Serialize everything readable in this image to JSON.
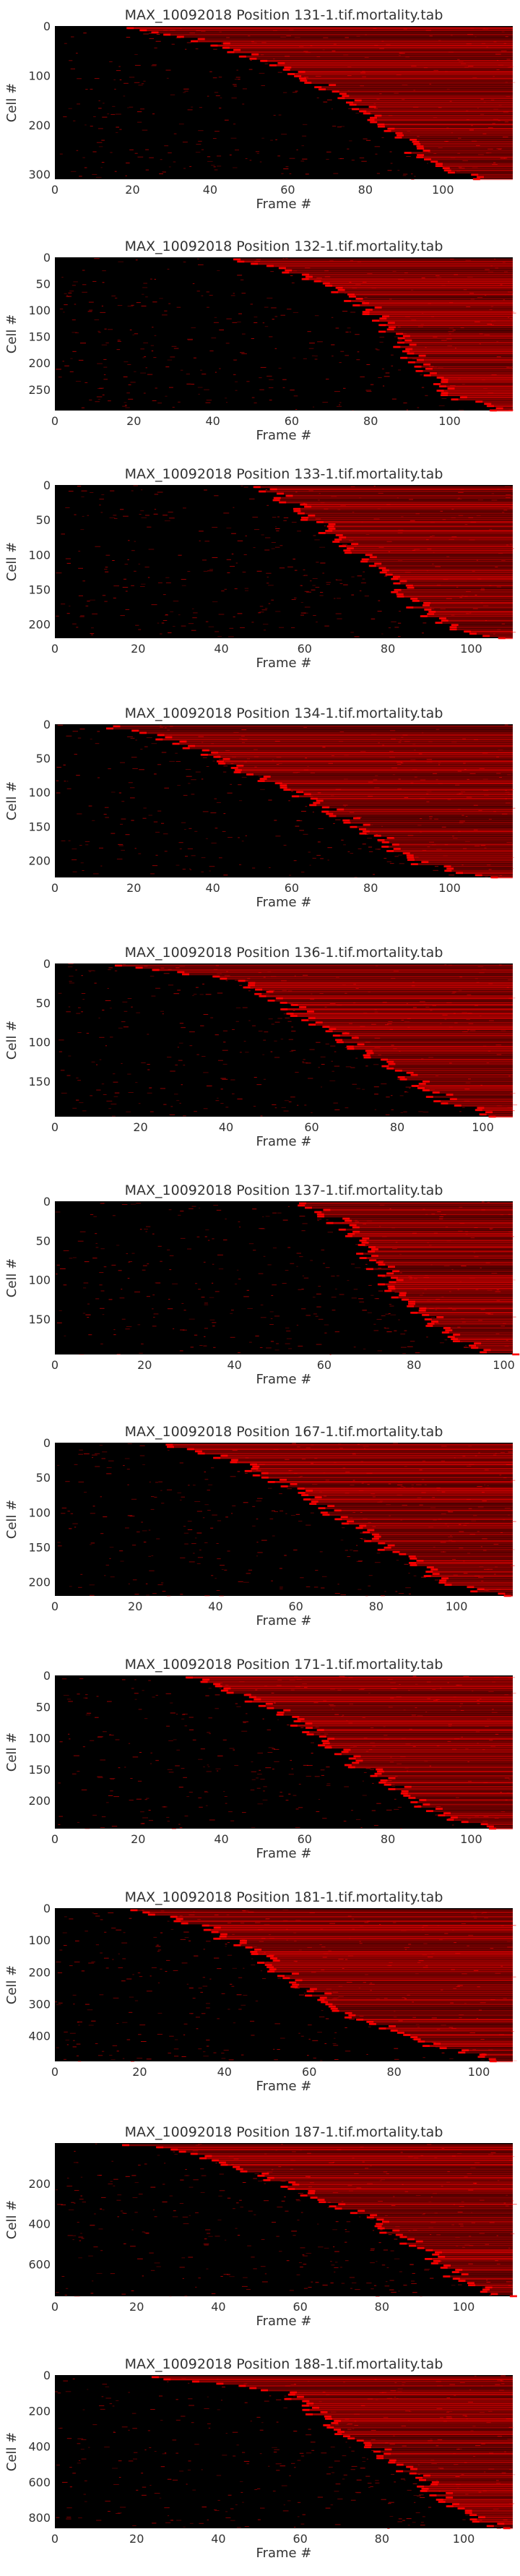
{
  "colors": {
    "background": "#000000",
    "signal": "#ff0000",
    "text": "#333333"
  },
  "chart_data": [
    {
      "type": "heatmap",
      "title": "MAX_10092018 Position 131-1.tif.mortality.tab",
      "xlabel": "Frame #",
      "ylabel": "Cell #",
      "xlim": [
        0,
        118
      ],
      "ylim": [
        0,
        310
      ],
      "xticks": [
        "0",
        "20",
        "40",
        "60",
        "80",
        "100"
      ],
      "yticks": [
        "0",
        "100",
        "200",
        "300"
      ],
      "onset_profile": {
        "cell_fraction": [
          0,
          0.1,
          0.3,
          0.5,
          0.7,
          0.9,
          1.0
        ],
        "frame": [
          16,
          40,
          62,
          78,
          88,
          96,
          110
        ]
      }
    },
    {
      "type": "heatmap",
      "title": "MAX_10092018 Position 132-1.tif.mortality.tab",
      "xlabel": "Frame #",
      "ylabel": "Cell #",
      "xlim": [
        0,
        116
      ],
      "ylim": [
        0,
        290
      ],
      "xticks": [
        "0",
        "20",
        "40",
        "60",
        "80",
        "100"
      ],
      "yticks": [
        "0",
        "50",
        "100",
        "150",
        "200",
        "250"
      ],
      "onset_profile": {
        "cell_fraction": [
          0,
          0.1,
          0.3,
          0.5,
          0.7,
          0.9,
          1.0
        ],
        "frame": [
          45,
          62,
          78,
          86,
          92,
          100,
          114
        ]
      }
    },
    {
      "type": "heatmap",
      "title": "MAX_10092018 Position 133-1.tif.mortality.tab",
      "xlabel": "Frame #",
      "ylabel": "Cell #",
      "xlim": [
        0,
        110
      ],
      "ylim": [
        0,
        220
      ],
      "xticks": [
        "0",
        "20",
        "40",
        "60",
        "80",
        "100"
      ],
      "yticks": [
        "0",
        "50",
        "100",
        "150",
        "200"
      ],
      "onset_profile": {
        "cell_fraction": [
          0,
          0.1,
          0.3,
          0.5,
          0.7,
          0.9,
          1.0
        ],
        "frame": [
          50,
          56,
          66,
          76,
          84,
          92,
          106
        ]
      }
    },
    {
      "type": "heatmap",
      "title": "MAX_10092018 Position 134-1.tif.mortality.tab",
      "xlabel": "Frame #",
      "ylabel": "Cell #",
      "xlim": [
        0,
        116
      ],
      "ylim": [
        0,
        225
      ],
      "xticks": [
        "0",
        "20",
        "40",
        "60",
        "80",
        "100"
      ],
      "yticks": [
        "0",
        "50",
        "100",
        "150",
        "200"
      ],
      "onset_profile": {
        "cell_fraction": [
          0,
          0.1,
          0.3,
          0.5,
          0.7,
          0.9,
          1.0
        ],
        "frame": [
          12,
          30,
          48,
          66,
          80,
          92,
          112
        ]
      }
    },
    {
      "type": "heatmap",
      "title": "MAX_10092018 Position 136-1.tif.mortality.tab",
      "xlabel": "Frame #",
      "ylabel": "Cell #",
      "xlim": [
        0,
        107
      ],
      "ylim": [
        0,
        195
      ],
      "xticks": [
        "0",
        "20",
        "40",
        "60",
        "80",
        "100"
      ],
      "yticks": [
        "0",
        "50",
        "100",
        "150"
      ],
      "onset_profile": {
        "cell_fraction": [
          0,
          0.1,
          0.3,
          0.5,
          0.7,
          0.9,
          1.0
        ],
        "frame": [
          12,
          44,
          56,
          68,
          80,
          92,
          104
        ]
      }
    },
    {
      "type": "heatmap",
      "title": "MAX_10092018 Position 137-1.tif.mortality.tab",
      "xlabel": "Frame #",
      "ylabel": "Cell #",
      "xlim": [
        0,
        102
      ],
      "ylim": [
        0,
        195
      ],
      "xticks": [
        "0",
        "20",
        "40",
        "60",
        "80",
        "100"
      ],
      "yticks": [
        "0",
        "50",
        "100",
        "150"
      ],
      "onset_profile": {
        "cell_fraction": [
          0,
          0.1,
          0.3,
          0.5,
          0.7,
          0.9,
          1.0
        ],
        "frame": [
          56,
          62,
          68,
          74,
          80,
          90,
          100
        ]
      }
    },
    {
      "type": "heatmap",
      "title": "MAX_10092018 Position 167-1.tif.mortality.tab",
      "xlabel": "Frame #",
      "ylabel": "Cell #",
      "xlim": [
        0,
        114
      ],
      "ylim": [
        0,
        220
      ],
      "xticks": [
        "0",
        "20",
        "40",
        "60",
        "80",
        "100"
      ],
      "yticks": [
        "0",
        "50",
        "100",
        "150",
        "200"
      ],
      "onset_profile": {
        "cell_fraction": [
          0,
          0.1,
          0.3,
          0.5,
          0.7,
          0.9,
          1.0
        ],
        "frame": [
          24,
          44,
          60,
          72,
          84,
          96,
          112
        ]
      }
    },
    {
      "type": "heatmap",
      "title": "MAX_10092018 Position 171-1.tif.mortality.tab",
      "xlabel": "Frame #",
      "ylabel": "Cell #",
      "xlim": [
        0,
        110
      ],
      "ylim": [
        0,
        245
      ],
      "xticks": [
        "0",
        "20",
        "40",
        "60",
        "80",
        "100"
      ],
      "yticks": [
        "0",
        "50",
        "100",
        "150",
        "200"
      ],
      "onset_profile": {
        "cell_fraction": [
          0,
          0.1,
          0.3,
          0.5,
          0.7,
          0.9,
          1.0
        ],
        "frame": [
          30,
          44,
          58,
          68,
          80,
          92,
          106
        ]
      }
    },
    {
      "type": "heatmap",
      "title": "MAX_10092018 Position 181-1.tif.mortality.tab",
      "xlabel": "Frame #",
      "ylabel": "Cell #",
      "xlim": [
        0,
        108
      ],
      "ylim": [
        0,
        480
      ],
      "xticks": [
        "0",
        "20",
        "40",
        "60",
        "80",
        "100"
      ],
      "yticks": [
        "0",
        "100",
        "200",
        "300",
        "400"
      ],
      "onset_profile": {
        "cell_fraction": [
          0,
          0.1,
          0.3,
          0.5,
          0.7,
          0.9,
          1.0
        ],
        "frame": [
          18,
          34,
          48,
          58,
          70,
          90,
          106
        ]
      }
    },
    {
      "type": "heatmap",
      "title": "MAX_10092018 Position 187-1.tif.mortality.tab",
      "xlabel": "Frame #",
      "ylabel": "Cell #",
      "xlim": [
        0,
        112
      ],
      "ylim": [
        0,
        760
      ],
      "xticks": [
        "0",
        "20",
        "40",
        "60",
        "80",
        "100"
      ],
      "yticks": [
        "200",
        "400",
        "600"
      ],
      "onset_profile": {
        "cell_fraction": [
          0,
          0.1,
          0.3,
          0.5,
          0.7,
          0.9,
          1.0
        ],
        "frame": [
          18,
          40,
          60,
          78,
          90,
          100,
          110
        ]
      }
    },
    {
      "type": "heatmap",
      "title": "MAX_10092018 Position 188-1.tif.mortality.tab",
      "xlabel": "Frame #",
      "ylabel": "Cell #",
      "xlim": [
        0,
        112
      ],
      "ylim": [
        0,
        860
      ],
      "xticks": [
        "0",
        "20",
        "40",
        "60",
        "80",
        "100"
      ],
      "yticks": [
        "0",
        "200",
        "400",
        "600",
        "800"
      ],
      "onset_profile": {
        "cell_fraction": [
          0,
          0.1,
          0.3,
          0.5,
          0.7,
          0.9,
          1.0
        ],
        "frame": [
          20,
          56,
          66,
          80,
          90,
          100,
          110
        ]
      }
    }
  ]
}
